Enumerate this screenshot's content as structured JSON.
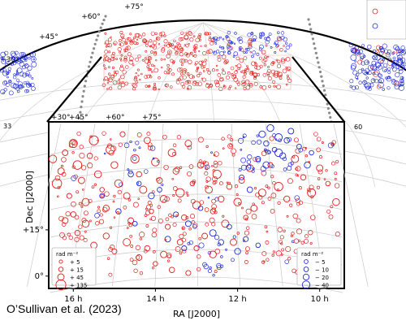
{
  "chart_data": [
    {
      "type": "scatter",
      "title": "",
      "projection": "all-sky (Hammer-Aitoff)",
      "dec_tick_labels": [
        "+75°",
        "+60°",
        "+45°",
        "+30°"
      ],
      "ra_tick_label": "33",
      "series": [
        {
          "sign": "positive",
          "color": "#e0201b",
          "points": [
            [
              150,
              60
            ],
            [
              152,
              62
            ],
            [
              155,
              65
            ],
            [
              158,
              62
            ],
            [
              162,
              58
            ],
            [
              165,
              60
            ],
            [
              168,
              55
            ],
            [
              172,
              52
            ],
            [
              176,
              50
            ],
            [
              180,
              48
            ],
            [
              185,
              50
            ],
            [
              190,
              55
            ],
            [
              195,
              58
            ],
            [
              200,
              60
            ],
            [
              205,
              63
            ],
            [
              210,
              60
            ],
            [
              215,
              58
            ],
            [
              220,
              55
            ],
            [
              225,
              58
            ],
            [
              230,
              60
            ]
          ]
        },
        {
          "sign": "negative",
          "color": "#1f2bd6",
          "points": [
            [
              260,
              50
            ],
            [
              262,
              48
            ],
            [
              265,
              52
            ],
            [
              268,
              46
            ],
            [
              272,
              50
            ],
            [
              275,
              55
            ],
            [
              255,
              45
            ],
            [
              250,
              48
            ],
            [
              20,
              30
            ],
            [
              25,
              32
            ],
            [
              28,
              35
            ],
            [
              32,
              38
            ],
            [
              330,
              25
            ],
            [
              335,
              30
            ],
            [
              338,
              35
            ],
            [
              342,
              40
            ],
            [
              345,
              45
            ],
            [
              348,
              48
            ]
          ]
        }
      ]
    },
    {
      "type": "scatter",
      "title": "",
      "xlabel": "RA [J2000]",
      "ylabel": "Dec [J2000]",
      "x_tick_labels": [
        "16 h",
        "14 h",
        "12 h",
        "10 h"
      ],
      "y_tick_labels": [
        "+15°",
        "0°"
      ],
      "dec_tick_labels": [
        "+30°",
        "+45°",
        "+60°",
        "+75°"
      ],
      "ra_tick_label": "60",
      "xlim": [
        16.6,
        9.4
      ],
      "ylim": [
        -4,
        50
      ],
      "grid": true,
      "legend_placement": "bottom-left and bottom-right",
      "legend_title": "rad m⁻²",
      "series": [
        {
          "name": "positive RM",
          "color": "#e0201b",
          "legend": [
            {
              "label": "+ 5",
              "rm": 5
            },
            {
              "label": "+ 15",
              "rm": 15
            },
            {
              "label": "+ 45",
              "rm": 45
            },
            {
              "label": "+ 135",
              "rm": 135
            }
          ],
          "points": [
            [
              16.5,
              38,
              70
            ],
            [
              16.3,
              34,
              45
            ],
            [
              16.4,
              30,
              120
            ],
            [
              16.2,
              40,
              30
            ],
            [
              16.0,
              43,
              80
            ],
            [
              16.1,
              26,
              20
            ],
            [
              15.9,
              36,
              95
            ],
            [
              15.8,
              31,
              40
            ],
            [
              15.7,
              24,
              60
            ],
            [
              15.6,
              39,
              25
            ],
            [
              15.5,
              44,
              110
            ],
            [
              15.4,
              33,
              55
            ],
            [
              15.3,
              28,
              15
            ],
            [
              15.2,
              22,
              35
            ],
            [
              15.1,
              41,
              90
            ],
            [
              15.0,
              36,
              50
            ],
            [
              14.9,
              30,
              70
            ],
            [
              14.8,
              46,
              20
            ],
            [
              14.7,
              26,
              45
            ],
            [
              14.6,
              18,
              30
            ],
            [
              14.5,
              38,
              85
            ],
            [
              14.4,
              33,
              25
            ],
            [
              14.3,
              28,
              60
            ],
            [
              14.2,
              44,
              40
            ],
            [
              14.1,
              21,
              15
            ],
            [
              14.0,
              37,
              75
            ],
            [
              13.9,
              31,
              30
            ],
            [
              13.8,
              25,
              55
            ],
            [
              13.7,
              16,
              20
            ],
            [
              13.6,
              40,
              65
            ],
            [
              13.5,
              34,
              35
            ],
            [
              13.4,
              27,
              90
            ],
            [
              13.3,
              19,
              25
            ],
            [
              13.2,
              43,
              45
            ],
            [
              13.1,
              30,
              15
            ],
            [
              13.0,
              23,
              70
            ],
            [
              12.9,
              36,
              40
            ],
            [
              12.8,
              13,
              30
            ],
            [
              12.7,
              28,
              55
            ],
            [
              12.6,
              21,
              20
            ],
            [
              12.5,
              33,
              85
            ],
            [
              12.4,
              25,
              35
            ],
            [
              12.3,
              17,
              60
            ],
            [
              12.2,
              29,
              25
            ],
            [
              12.1,
              11,
              45
            ],
            [
              12.0,
              24,
              70
            ],
            [
              11.9,
              31,
              30
            ],
            [
              11.8,
              19,
              15
            ],
            [
              11.7,
              35,
              55
            ],
            [
              11.6,
              22,
              40
            ],
            [
              11.4,
              27,
              65
            ],
            [
              11.2,
              36,
              20
            ],
            [
              11.0,
              29,
              95
            ],
            [
              10.8,
              25,
              35
            ],
            [
              10.6,
              38,
              60
            ],
            [
              10.4,
              32,
              25
            ],
            [
              10.2,
              27,
              80
            ],
            [
              10.0,
              35,
              45
            ],
            [
              9.8,
              30,
              15
            ],
            [
              9.6,
              24,
              55
            ],
            [
              15.9,
              14,
              25
            ],
            [
              15.5,
              10,
              40
            ],
            [
              15.0,
              8,
              20
            ],
            [
              14.4,
              6,
              30
            ],
            [
              14.0,
              4,
              15
            ],
            [
              13.6,
              2,
              25
            ],
            [
              13.2,
              1,
              20
            ],
            [
              15.7,
              17,
              55
            ],
            [
              15.2,
              13,
              35
            ],
            [
              14.7,
              11,
              60
            ],
            [
              14.2,
              9,
              25
            ],
            [
              13.8,
              7,
              45
            ],
            [
              13.4,
              11,
              30
            ],
            [
              13.0,
              9,
              20
            ],
            [
              12.6,
              7,
              50
            ],
            [
              16.2,
              18,
              35
            ],
            [
              16.0,
              20,
              25
            ]
          ]
        },
        {
          "name": "negative RM",
          "color": "#1f2bd6",
          "legend": [
            {
              "label": "− 5",
              "rm": -5
            },
            {
              "label": "− 10",
              "rm": -10
            },
            {
              "label": "− 20",
              "rm": -20
            },
            {
              "label": "− 40",
              "rm": -40
            }
          ],
          "points": [
            [
              11.4,
              46,
              -25
            ],
            [
              11.3,
              43,
              -15
            ],
            [
              11.2,
              48,
              -30
            ],
            [
              11.1,
              41,
              -10
            ],
            [
              11.0,
              45,
              -35
            ],
            [
              10.9,
              39,
              -20
            ],
            [
              10.8,
              44,
              -15
            ],
            [
              11.5,
              38,
              -12
            ],
            [
              11.3,
              36,
              -25
            ],
            [
              11.0,
              40,
              -40
            ],
            [
              10.7,
              47,
              -18
            ],
            [
              10.5,
              42,
              -10
            ],
            [
              10.3,
              36,
              -22
            ],
            [
              10.2,
              40,
              -8
            ],
            [
              14.6,
              33,
              -15
            ],
            [
              14.4,
              30,
              -8
            ],
            [
              14.1,
              26,
              -20
            ],
            [
              13.9,
              28,
              -10
            ],
            [
              13.5,
              20,
              -12
            ],
            [
              13.2,
              17,
              -18
            ],
            [
              12.9,
              22,
              -8
            ],
            [
              12.6,
              14,
              -25
            ],
            [
              12.4,
              11,
              -15
            ],
            [
              12.2,
              16,
              -10
            ],
            [
              12.0,
              8,
              -20
            ],
            [
              11.8,
              12,
              -12
            ],
            [
              11.5,
              10,
              -8
            ],
            [
              15.3,
              26,
              -10
            ],
            [
              14.9,
              21,
              -14
            ],
            [
              14.5,
              17,
              -9
            ],
            [
              13.7,
              12,
              -18
            ],
            [
              13.3,
              9,
              -12
            ],
            [
              11.7,
              28,
              -16
            ],
            [
              11.9,
              32,
              -11
            ]
          ]
        }
      ]
    }
  ],
  "citation": "O’Sullivan et al. (2023)"
}
